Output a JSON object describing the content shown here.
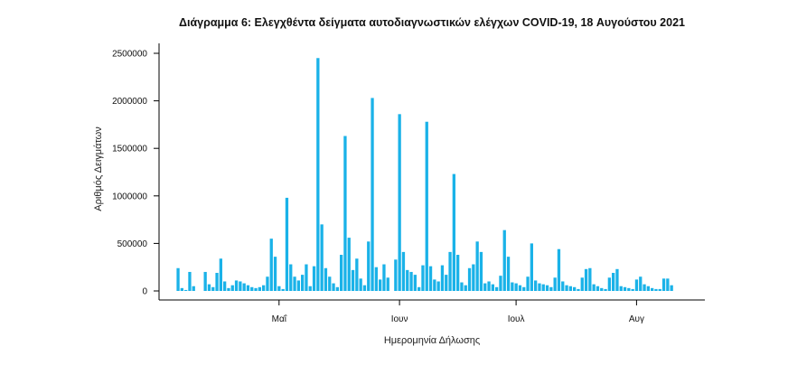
{
  "chart_data": {
    "type": "bar",
    "title": "Διάγραμμα 6: Ελεγχθέντα δείγματα αυτοδιαγνωστικών ελέγχων COVID-19, 18 Αυγούστου 2021",
    "xlabel": "Ημερομηνία Δήλωσης",
    "ylabel": "Αριθμός Δειγμάτων",
    "ylim": [
      0,
      2500000
    ],
    "yticks": [
      0,
      500000,
      1000000,
      1500000,
      2000000,
      2500000
    ],
    "ytick_labels": [
      "0",
      "500000",
      "1000000",
      "1500000",
      "2000000",
      "2500000"
    ],
    "x_start": "2021-04-05",
    "x_end": "2021-08-16",
    "xticks": [
      {
        "date": "2021-05-01",
        "label": "Μαΐ"
      },
      {
        "date": "2021-06-01",
        "label": "Ιουν"
      },
      {
        "date": "2021-07-01",
        "label": "Ιουλ"
      },
      {
        "date": "2021-08-01",
        "label": "Αυγ"
      }
    ],
    "bar_color": "#1ab2e8",
    "grid": false,
    "values": [
      240000,
      30000,
      10000,
      200000,
      50000,
      0,
      0,
      200000,
      70000,
      40000,
      190000,
      340000,
      100000,
      30000,
      60000,
      110000,
      100000,
      80000,
      60000,
      40000,
      30000,
      40000,
      60000,
      150000,
      550000,
      360000,
      50000,
      20000,
      980000,
      280000,
      150000,
      110000,
      170000,
      280000,
      50000,
      260000,
      2450000,
      700000,
      240000,
      150000,
      80000,
      40000,
      380000,
      1630000,
      560000,
      220000,
      340000,
      130000,
      60000,
      520000,
      2030000,
      250000,
      120000,
      280000,
      140000,
      0,
      330000,
      1860000,
      410000,
      220000,
      200000,
      170000,
      40000,
      270000,
      1780000,
      260000,
      120000,
      100000,
      270000,
      170000,
      410000,
      1230000,
      380000,
      90000,
      60000,
      240000,
      280000,
      520000,
      410000,
      80000,
      100000,
      70000,
      40000,
      160000,
      640000,
      360000,
      90000,
      80000,
      60000,
      40000,
      150000,
      500000,
      110000,
      80000,
      70000,
      60000,
      40000,
      140000,
      440000,
      100000,
      60000,
      50000,
      40000,
      20000,
      140000,
      230000,
      240000,
      70000,
      50000,
      30000,
      20000,
      140000,
      190000,
      230000,
      50000,
      40000,
      30000,
      20000,
      120000,
      150000,
      70000,
      50000,
      30000,
      20000,
      20000,
      130000,
      130000,
      60000
    ]
  }
}
